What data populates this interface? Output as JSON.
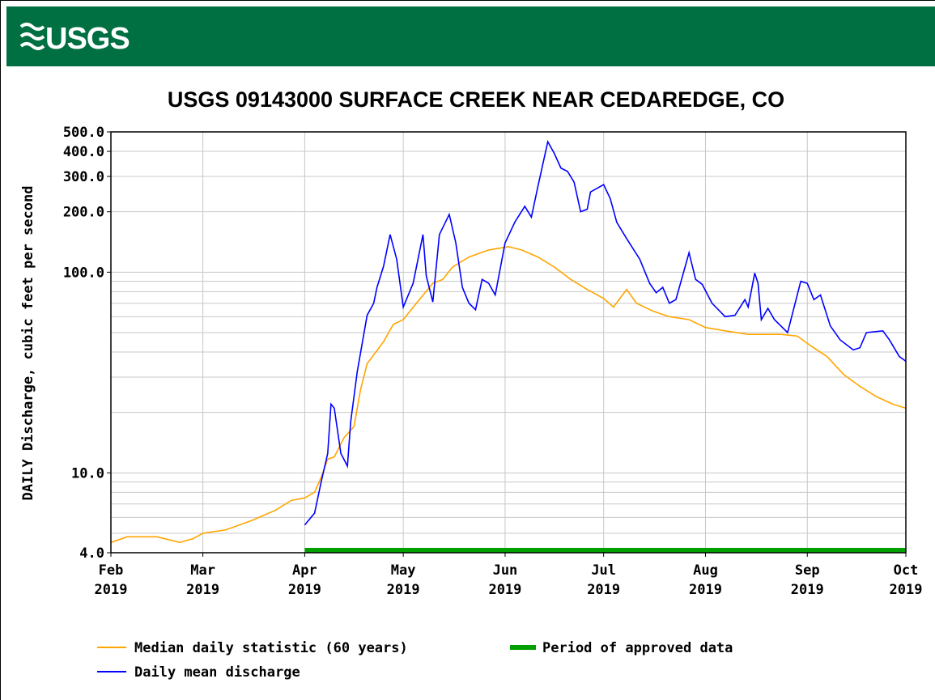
{
  "header": {
    "logo": "USGS"
  },
  "chart_data": {
    "type": "line",
    "title": "USGS 09143000 SURFACE CREEK NEAR CEDAREDGE, CO",
    "ylabel": "DAILY Discharge, cubic feet per second",
    "yscale": "log",
    "grid": true,
    "xlim": [
      "2019-02-01",
      "2019-10-01"
    ],
    "xticks": [
      {
        "value": "2019-02-01",
        "label": "Feb\n2019"
      },
      {
        "value": "2019-03-01",
        "label": "Mar\n2019"
      },
      {
        "value": "2019-04-01",
        "label": "Apr\n2019"
      },
      {
        "value": "2019-05-01",
        "label": "May\n2019"
      },
      {
        "value": "2019-06-01",
        "label": "Jun\n2019"
      },
      {
        "value": "2019-07-01",
        "label": "Jul\n2019"
      },
      {
        "value": "2019-08-01",
        "label": "Aug\n2019"
      },
      {
        "value": "2019-09-01",
        "label": "Sep\n2019"
      },
      {
        "value": "2019-10-01",
        "label": "Oct\n2019"
      }
    ],
    "ylim": [
      4,
      500
    ],
    "yticks": [
      {
        "value": 4,
        "label": "4.0"
      },
      {
        "value": 10,
        "label": "10.0"
      },
      {
        "value": 100,
        "label": "100.0"
      },
      {
        "value": 200,
        "label": "200.0"
      },
      {
        "value": 300,
        "label": "300.0"
      },
      {
        "value": 400,
        "label": "400.0"
      },
      {
        "value": 500,
        "label": "500.0"
      }
    ],
    "yminor": [
      5,
      6,
      7,
      8,
      9,
      20,
      30,
      40,
      50,
      60,
      70,
      80,
      90
    ],
    "series": [
      {
        "name": "Median daily statistic (60 years)",
        "color": "#ffa500",
        "x": [
          "2019-02-01",
          "2019-02-06",
          "2019-02-15",
          "2019-02-22",
          "2019-02-26",
          "2019-03-01",
          "2019-03-08",
          "2019-03-16",
          "2019-03-23",
          "2019-03-28",
          "2019-04-01",
          "2019-04-04",
          "2019-04-06",
          "2019-04-08",
          "2019-04-10",
          "2019-04-13",
          "2019-04-16",
          "2019-04-18",
          "2019-04-20",
          "2019-04-25",
          "2019-04-28",
          "2019-05-01",
          "2019-05-05",
          "2019-05-10",
          "2019-05-13",
          "2019-05-16",
          "2019-05-21",
          "2019-05-27",
          "2019-06-02",
          "2019-06-06",
          "2019-06-11",
          "2019-06-16",
          "2019-06-21",
          "2019-06-26",
          "2019-07-01",
          "2019-07-04",
          "2019-07-08",
          "2019-07-11",
          "2019-07-16",
          "2019-07-21",
          "2019-07-27",
          "2019-08-01",
          "2019-08-07",
          "2019-08-14",
          "2019-08-24",
          "2019-08-29",
          "2019-09-02",
          "2019-09-07",
          "2019-09-12",
          "2019-09-17",
          "2019-09-22",
          "2019-09-27",
          "2019-10-01"
        ],
        "values": [
          4.5,
          4.8,
          4.8,
          4.5,
          4.7,
          5.0,
          5.2,
          5.8,
          6.5,
          7.3,
          7.5,
          8.0,
          9.5,
          11.7,
          12,
          15,
          17,
          26,
          35,
          45,
          55,
          58,
          70,
          88,
          92,
          106,
          119,
          129,
          134,
          129,
          119,
          106,
          92,
          82,
          74,
          67,
          82,
          70,
          64,
          60,
          58,
          53,
          51,
          49,
          49,
          48,
          43,
          38,
          31,
          27,
          24,
          22,
          21
        ]
      },
      {
        "name": "Daily mean discharge",
        "color": "#0000ff",
        "x": [
          "2019-04-01",
          "2019-04-04",
          "2019-04-06",
          "2019-04-08",
          "2019-04-09",
          "2019-04-10",
          "2019-04-12",
          "2019-04-14",
          "2019-04-15",
          "2019-04-17",
          "2019-04-20",
          "2019-04-22",
          "2019-04-23",
          "2019-04-25",
          "2019-04-27",
          "2019-04-29",
          "2019-05-01",
          "2019-05-04",
          "2019-05-07",
          "2019-05-08",
          "2019-05-10",
          "2019-05-12",
          "2019-05-15",
          "2019-05-17",
          "2019-05-19",
          "2019-05-21",
          "2019-05-23",
          "2019-05-25",
          "2019-05-27",
          "2019-05-29",
          "2019-06-01",
          "2019-06-04",
          "2019-06-07",
          "2019-06-09",
          "2019-06-11",
          "2019-06-14",
          "2019-06-16",
          "2019-06-18",
          "2019-06-20",
          "2019-06-22",
          "2019-06-24",
          "2019-06-26",
          "2019-06-27",
          "2019-07-01",
          "2019-07-03",
          "2019-07-05",
          "2019-07-08",
          "2019-07-12",
          "2019-07-15",
          "2019-07-17",
          "2019-07-19",
          "2019-07-21",
          "2019-07-23",
          "2019-07-27",
          "2019-07-29",
          "2019-07-31",
          "2019-08-03",
          "2019-08-07",
          "2019-08-10",
          "2019-08-13",
          "2019-08-14",
          "2019-08-16",
          "2019-08-17",
          "2019-08-18",
          "2019-08-20",
          "2019-08-22",
          "2019-08-26",
          "2019-08-30",
          "2019-09-01",
          "2019-09-03",
          "2019-09-05",
          "2019-09-08",
          "2019-09-11",
          "2019-09-15",
          "2019-09-17",
          "2019-09-19",
          "2019-09-24",
          "2019-09-26",
          "2019-09-29",
          "2019-10-01"
        ],
        "values": [
          5.5,
          6.3,
          9.0,
          12.5,
          22,
          21,
          12.5,
          10.8,
          18,
          32,
          61,
          70,
          84,
          107,
          154,
          116,
          67,
          88,
          154,
          96,
          71,
          154,
          194,
          140,
          84,
          70,
          65,
          92,
          88,
          77,
          140,
          178,
          213,
          188,
          268,
          447,
          390,
          330,
          318,
          281,
          200,
          206,
          251,
          273,
          233,
          177,
          147,
          116,
          88,
          79,
          84,
          70,
          73,
          125,
          92,
          87,
          70,
          60,
          61,
          73,
          67,
          99,
          88,
          58,
          66,
          58,
          50,
          90,
          88,
          73,
          77,
          54,
          46,
          41,
          42,
          50,
          51,
          46,
          38,
          36
        ]
      }
    ],
    "approved": {
      "name": "Period of approved data",
      "color": "#00a000",
      "start": "2019-04-01",
      "end": "2019-10-01"
    }
  }
}
